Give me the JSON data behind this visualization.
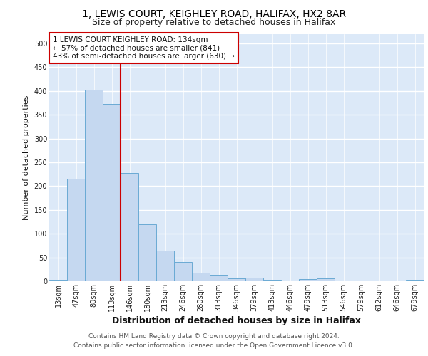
{
  "title1": "1, LEWIS COURT, KEIGHLEY ROAD, HALIFAX, HX2 8AR",
  "title2": "Size of property relative to detached houses in Halifax",
  "xlabel": "Distribution of detached houses by size in Halifax",
  "ylabel": "Number of detached properties",
  "footer1": "Contains HM Land Registry data © Crown copyright and database right 2024.",
  "footer2": "Contains public sector information licensed under the Open Government Licence v3.0.",
  "annotation_line1": "1 LEWIS COURT KEIGHLEY ROAD: 134sqm",
  "annotation_line2": "← 57% of detached houses are smaller (841)",
  "annotation_line3": "43% of semi-detached houses are larger (630) →",
  "categories": [
    "13sqm",
    "47sqm",
    "80sqm",
    "113sqm",
    "146sqm",
    "180sqm",
    "213sqm",
    "246sqm",
    "280sqm",
    "313sqm",
    "346sqm",
    "379sqm",
    "413sqm",
    "446sqm",
    "479sqm",
    "513sqm",
    "546sqm",
    "579sqm",
    "612sqm",
    "646sqm",
    "679sqm"
  ],
  "values": [
    3,
    216,
    403,
    373,
    228,
    120,
    64,
    40,
    18,
    14,
    6,
    7,
    3,
    0,
    5,
    6,
    1,
    0,
    0,
    2,
    3
  ],
  "bar_color": "#c5d8f0",
  "bar_edge_color": "#6aaad4",
  "red_line_x": 4,
  "red_line_color": "#cc0000",
  "ylim": [
    0,
    520
  ],
  "fig_background": "#ffffff",
  "axes_background": "#dce9f8",
  "grid_color": "#ffffff",
  "annotation_box_edge": "#cc0000",
  "title1_fontsize": 10,
  "title2_fontsize": 9,
  "xlabel_fontsize": 9,
  "ylabel_fontsize": 8,
  "tick_fontsize": 7,
  "footer_fontsize": 6.5,
  "annotation_fontsize": 7.5
}
